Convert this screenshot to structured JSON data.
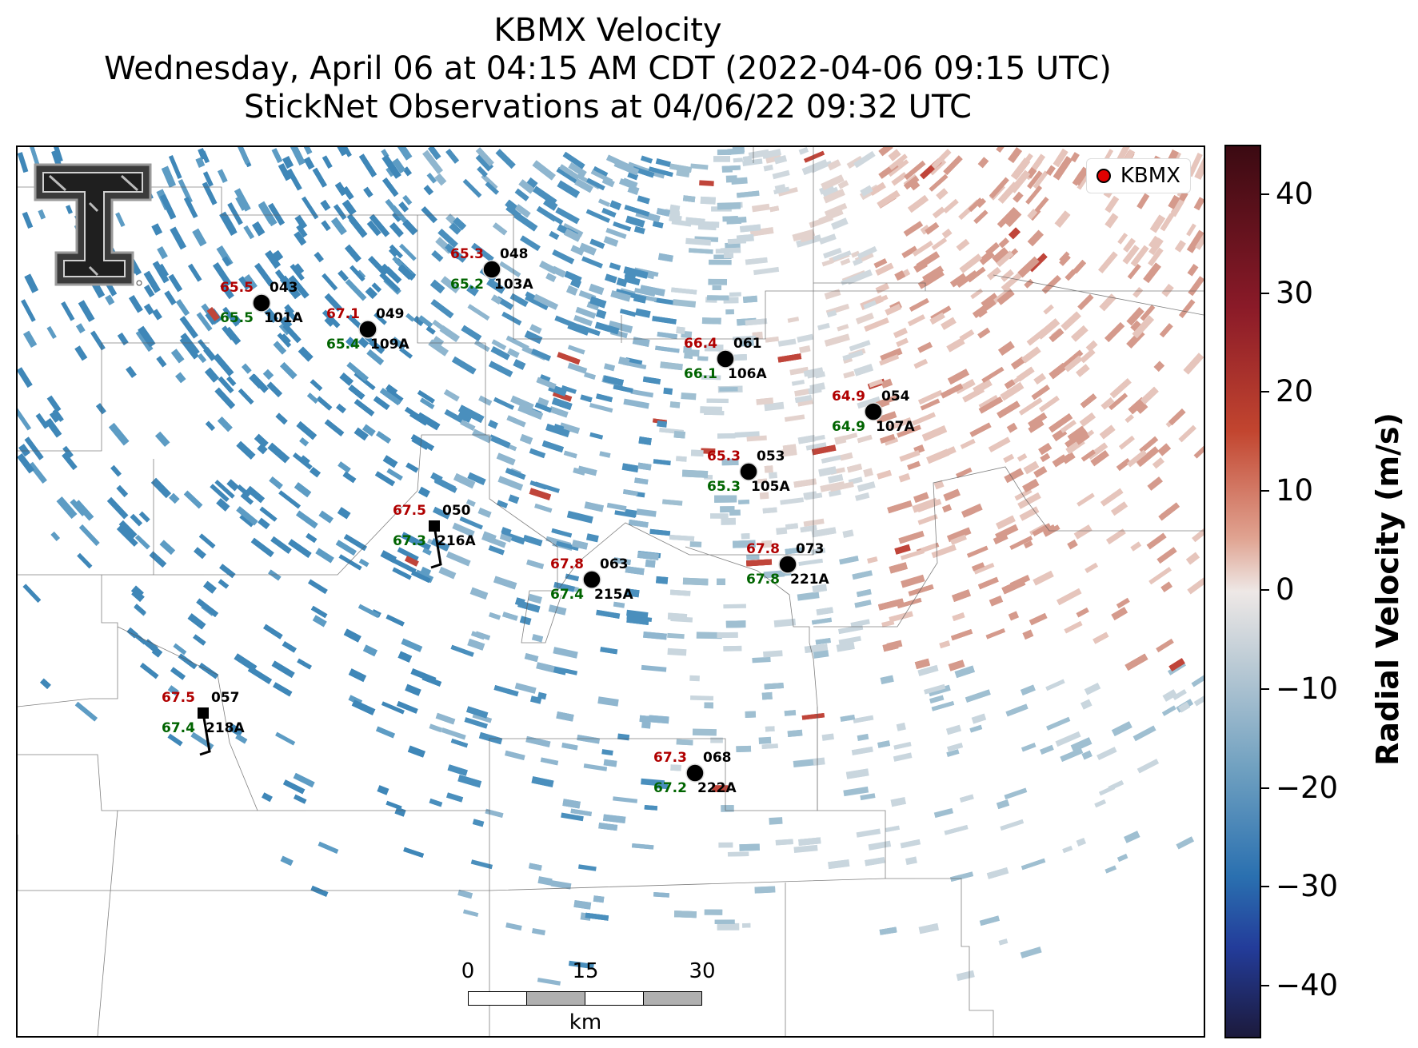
{
  "title": {
    "line1": "KBMX Velocity",
    "line2": "Wednesday, April 06 at 04:15 AM CDT (2022-04-06 09:15 UTC)",
    "line3": "StickNet Observations at 04/06/22 09:32 UTC"
  },
  "legend": {
    "label": "KBMX",
    "marker_color": "#e00000"
  },
  "logo": {
    "icon": "texas-tech-double-t-logo"
  },
  "colorbar": {
    "label": "Radial Velocity (m/s)",
    "range": [
      -45,
      45
    ],
    "ticks": [
      40,
      30,
      20,
      10,
      0,
      -10,
      -20,
      -30,
      -40
    ],
    "tick_labels": [
      "40",
      "30",
      "20",
      "10",
      "0",
      "−10",
      "−20",
      "−30",
      "−40"
    ],
    "colors": [
      "#3b0a12",
      "#8a1a28",
      "#c2452f",
      "#e0a391",
      "#eee8e6",
      "#bccbd5",
      "#6fa0c0",
      "#2a70b0",
      "#233c9a",
      "#1c1a3c"
    ]
  },
  "scale_bar": {
    "labels": [
      "0",
      "15",
      "30"
    ],
    "unit": "km"
  },
  "stations": [
    {
      "id": "101A",
      "probe": "043",
      "temp": "65.5",
      "dew": "65.5",
      "marker": "circle"
    },
    {
      "id": "109A",
      "probe": "049",
      "temp": "67.1",
      "dew": "65.4",
      "marker": "circle"
    },
    {
      "id": "103A",
      "probe": "048",
      "temp": "65.3",
      "dew": "65.2",
      "marker": "circle"
    },
    {
      "id": "106A",
      "probe": "061",
      "temp": "66.4",
      "dew": "66.1",
      "marker": "circle"
    },
    {
      "id": "107A",
      "probe": "054",
      "temp": "64.9",
      "dew": "64.9",
      "marker": "circle"
    },
    {
      "id": "105A",
      "probe": "053",
      "temp": "65.3",
      "dew": "65.3",
      "marker": "circle"
    },
    {
      "id": "216A",
      "probe": "050",
      "temp": "67.5",
      "dew": "67.3",
      "marker": "square-barb"
    },
    {
      "id": "215A",
      "probe": "063",
      "temp": "67.8",
      "dew": "67.4",
      "marker": "circle"
    },
    {
      "id": "221A",
      "probe": "073",
      "temp": "67.8",
      "dew": "67.8",
      "marker": "circle"
    },
    {
      "id": "218A",
      "probe": "057",
      "temp": "67.5",
      "dew": "67.4",
      "marker": "square-barb"
    },
    {
      "id": "222A",
      "probe": "068",
      "temp": "67.3",
      "dew": "67.2",
      "marker": "circle"
    }
  ],
  "label_colors": {
    "temp": "#b00000",
    "dew": "#006400",
    "id": "#000000"
  }
}
